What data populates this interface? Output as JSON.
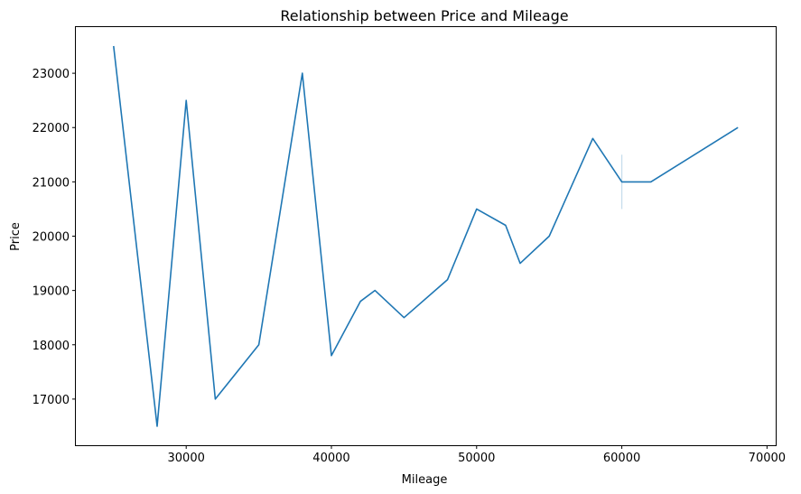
{
  "chart_data": {
    "type": "line",
    "title": "Relationship between Price and Mileage",
    "xlabel": "Mileage",
    "ylabel": "Price",
    "xlim": [
      22400,
      70600
    ],
    "ylim": [
      16150,
      23850
    ],
    "xticks": [
      30000,
      40000,
      50000,
      60000,
      70000
    ],
    "yticks": [
      17000,
      18000,
      19000,
      20000,
      21000,
      22000,
      23000
    ],
    "grid": false,
    "series": [
      {
        "color": "#1f77b4",
        "points": [
          {
            "x": 25000,
            "y": 23500
          },
          {
            "x": 28000,
            "y": 16500
          },
          {
            "x": 30000,
            "y": 22500
          },
          {
            "x": 32000,
            "y": 17000
          },
          {
            "x": 35000,
            "y": 18000
          },
          {
            "x": 38000,
            "y": 23000
          },
          {
            "x": 40000,
            "y": 17800
          },
          {
            "x": 42000,
            "y": 18800
          },
          {
            "x": 43000,
            "y": 19000
          },
          {
            "x": 45000,
            "y": 18500
          },
          {
            "x": 48000,
            "y": 19200
          },
          {
            "x": 50000,
            "y": 20500
          },
          {
            "x": 52000,
            "y": 20200
          },
          {
            "x": 53000,
            "y": 19500
          },
          {
            "x": 55000,
            "y": 20000
          },
          {
            "x": 58000,
            "y": 21800
          },
          {
            "x": 60000,
            "y": 21000
          },
          {
            "x": 62000,
            "y": 21000
          },
          {
            "x": 68000,
            "y": 22000
          }
        ],
        "error_bars": [
          {
            "x": 60000,
            "low": 20500,
            "high": 21500
          }
        ]
      }
    ]
  }
}
